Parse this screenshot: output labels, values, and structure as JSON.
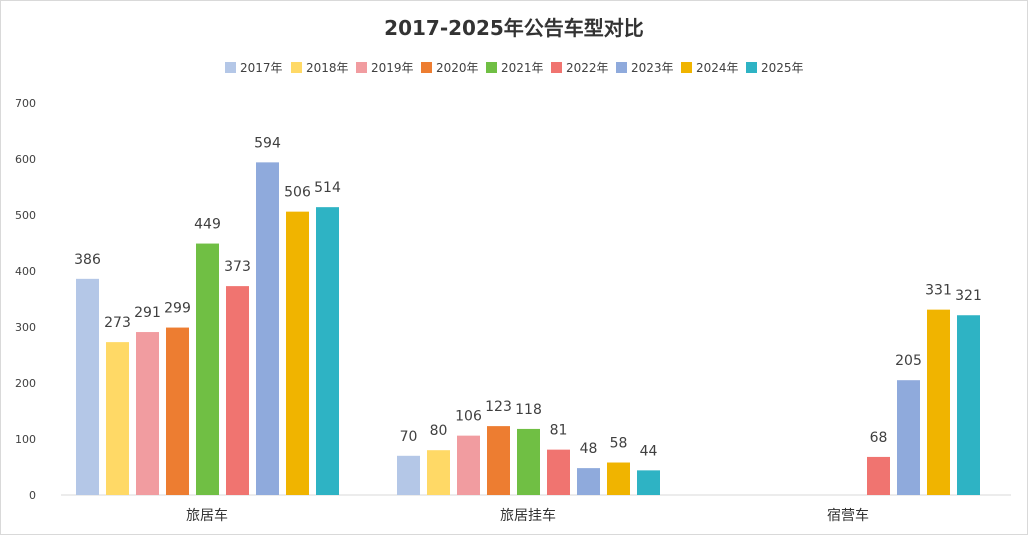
{
  "chart_data": {
    "type": "bar",
    "title": "2017-2025年公告车型对比",
    "categories": [
      "旅居车",
      "旅居挂车",
      "宿营车"
    ],
    "series": [
      {
        "name": "2017年",
        "color": "#b4c7e7",
        "values": [
          386,
          70,
          null
        ]
      },
      {
        "name": "2018年",
        "color": "#ffd966",
        "values": [
          273,
          80,
          null
        ]
      },
      {
        "name": "2019年",
        "color": "#f19ca0",
        "values": [
          291,
          106,
          null
        ]
      },
      {
        "name": "2020年",
        "color": "#ed7d31",
        "values": [
          299,
          123,
          null
        ]
      },
      {
        "name": "2021年",
        "color": "#70bf44",
        "values": [
          449,
          118,
          null
        ]
      },
      {
        "name": "2022年",
        "color": "#f07470",
        "values": [
          373,
          81,
          68
        ]
      },
      {
        "name": "2023年",
        "color": "#8faadc",
        "values": [
          594,
          48,
          205
        ]
      },
      {
        "name": "2024年",
        "color": "#f0b400",
        "values": [
          506,
          58,
          331
        ]
      },
      {
        "name": "2025年",
        "color": "#2eb3c4",
        "values": [
          514,
          44,
          321
        ]
      }
    ],
    "yticks": [
      "0",
      "100",
      "200",
      "300",
      "400",
      "500",
      "600",
      "700"
    ],
    "ylim": [
      0,
      700
    ],
    "grid": false,
    "legend_position": "top"
  }
}
